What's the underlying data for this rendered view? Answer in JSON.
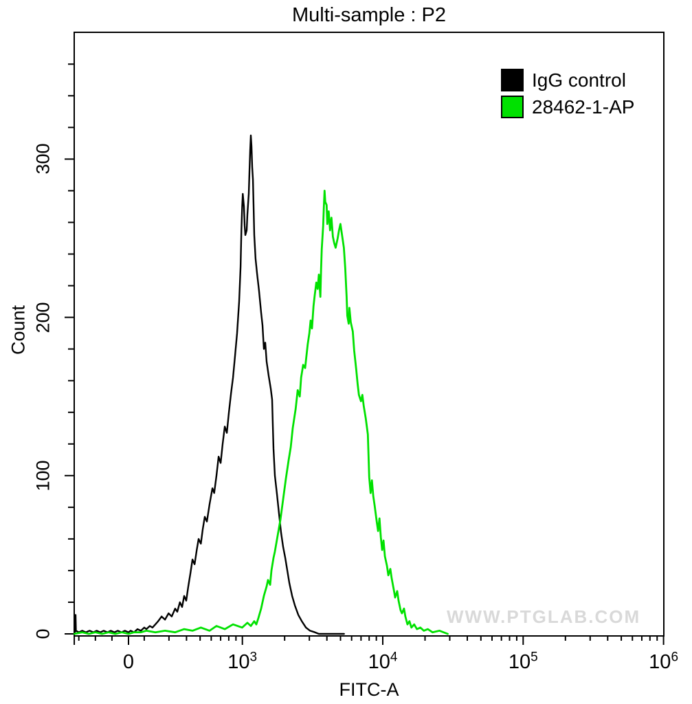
{
  "title": "Multi-sample : P2",
  "watermark": "WWW.PTGLAB.COM",
  "colors": {
    "igg_control": "#000000",
    "antibody": "#00e100",
    "watermark_gray": "#d9d9d9",
    "axis": "#000000",
    "background": "#ffffff"
  },
  "legend": [
    {
      "label": "IgG control",
      "color": "#000000"
    },
    {
      "label": "28462-1-AP",
      "color": "#00e100"
    }
  ],
  "chart_data": {
    "type": "line",
    "subtype": "flow-cytometry-histogram-overlay",
    "title": "Multi-sample : P2",
    "xlabel": "FITC-A",
    "ylabel": "Count",
    "x_scale": "biexponential-log",
    "x_range": [
      -655,
      1000000
    ],
    "y_range": [
      0,
      380
    ],
    "grid": false,
    "legend_position": "top-right",
    "x_ticks": [
      {
        "value": 0,
        "label": "0"
      },
      {
        "value": 1000,
        "base": "10",
        "exp": "3"
      },
      {
        "value": 10000,
        "base": "10",
        "exp": "4"
      },
      {
        "value": 100000,
        "base": "10",
        "exp": "5"
      },
      {
        "value": 1000000,
        "base": "10",
        "exp": "6"
      }
    ],
    "x_minor_ticks": [
      -600,
      -400,
      -200,
      200,
      300,
      400,
      500,
      600,
      700,
      800,
      900,
      2000,
      3000,
      4000,
      5000,
      6000,
      7000,
      8000,
      9000,
      20000,
      30000,
      40000,
      50000,
      60000,
      70000,
      80000,
      90000,
      200000,
      300000,
      400000,
      500000,
      600000,
      700000,
      800000,
      900000
    ],
    "x_edge_tick": -655,
    "y_ticks": [
      {
        "value": 0,
        "label": "0"
      },
      {
        "value": 100,
        "label": "100"
      },
      {
        "value": 200,
        "label": "200"
      },
      {
        "value": 300,
        "label": "300"
      }
    ],
    "y_minor_step": 20,
    "y_minor_max": 360,
    "series": [
      {
        "name": "IgG control",
        "color": "#000000",
        "stroke_width": 2.4,
        "peak": {
          "x": 1150,
          "count": 315
        },
        "points": [
          [
            -655,
            0
          ],
          [
            -648,
            1
          ],
          [
            -643,
            2
          ],
          [
            -639,
            12
          ],
          [
            -635,
            2
          ],
          [
            -600,
            1
          ],
          [
            -560,
            2
          ],
          [
            -515,
            1
          ],
          [
            -470,
            2
          ],
          [
            -425,
            1
          ],
          [
            -385,
            2
          ],
          [
            -340,
            1
          ],
          [
            -300,
            2
          ],
          [
            -255,
            1
          ],
          [
            -215,
            2
          ],
          [
            -170,
            1
          ],
          [
            -130,
            2
          ],
          [
            -85,
            1
          ],
          [
            -45,
            2
          ],
          [
            0,
            1
          ],
          [
            25,
            2
          ],
          [
            66,
            1
          ],
          [
            108,
            3
          ],
          [
            149,
            2
          ],
          [
            191,
            4
          ],
          [
            207,
            3
          ],
          [
            219,
            5
          ],
          [
            229,
            4
          ],
          [
            240,
            6
          ],
          [
            251,
            8
          ],
          [
            266,
            11
          ],
          [
            281,
            9
          ],
          [
            298,
            13
          ],
          [
            314,
            11
          ],
          [
            332,
            16
          ],
          [
            344,
            14
          ],
          [
            359,
            20
          ],
          [
            372,
            17
          ],
          [
            385,
            24
          ],
          [
            398,
            21
          ],
          [
            412,
            30
          ],
          [
            426,
            38
          ],
          [
            441,
            47
          ],
          [
            457,
            44
          ],
          [
            473,
            53
          ],
          [
            488,
            60
          ],
          [
            506,
            57
          ],
          [
            522,
            66
          ],
          [
            540,
            74
          ],
          [
            559,
            71
          ],
          [
            584,
            82
          ],
          [
            612,
            92
          ],
          [
            630,
            89
          ],
          [
            654,
            100
          ],
          [
            677,
            112
          ],
          [
            700,
            108
          ],
          [
            724,
            120
          ],
          [
            749,
            131
          ],
          [
            775,
            127
          ],
          [
            802,
            140
          ],
          [
            830,
            152
          ],
          [
            858,
            162
          ],
          [
            887,
            176
          ],
          [
            917,
            190
          ],
          [
            948,
            210
          ],
          [
            971,
            232
          ],
          [
            984,
            255
          ],
          [
            997,
            270
          ],
          [
            1007,
            278
          ],
          [
            1026,
            270
          ],
          [
            1038,
            258
          ],
          [
            1050,
            252
          ],
          [
            1074,
            255
          ],
          [
            1086,
            265
          ],
          [
            1110,
            278
          ],
          [
            1123,
            292
          ],
          [
            1136,
            305
          ],
          [
            1149,
            315
          ],
          [
            1162,
            308
          ],
          [
            1175,
            295
          ],
          [
            1189,
            287
          ],
          [
            1215,
            252
          ],
          [
            1242,
            237
          ],
          [
            1271,
            228
          ],
          [
            1314,
            217
          ],
          [
            1360,
            203
          ],
          [
            1391,
            195
          ],
          [
            1423,
            180
          ],
          [
            1455,
            184
          ],
          [
            1489,
            172
          ],
          [
            1540,
            163
          ],
          [
            1593,
            155
          ],
          [
            1629,
            148
          ],
          [
            1647,
            132
          ],
          [
            1666,
            117
          ],
          [
            1705,
            100
          ],
          [
            1764,
            88
          ],
          [
            1824,
            76
          ],
          [
            1887,
            64
          ],
          [
            1952,
            55
          ],
          [
            2020,
            48
          ],
          [
            2089,
            40
          ],
          [
            2162,
            32
          ],
          [
            2262,
            24
          ],
          [
            2367,
            18
          ],
          [
            2504,
            12
          ],
          [
            2651,
            8
          ],
          [
            2837,
            4
          ],
          [
            3035,
            2
          ],
          [
            3287,
            1
          ],
          [
            3506,
            0
          ],
          [
            5300,
            0
          ]
        ]
      },
      {
        "name": "28462-1-AP",
        "color": "#00e100",
        "stroke_width": 2.8,
        "peak": {
          "x": 3850,
          "count": 280
        },
        "points": [
          [
            -655,
            0
          ],
          [
            -560,
            1
          ],
          [
            -480,
            0
          ],
          [
            -400,
            1
          ],
          [
            -320,
            0
          ],
          [
            -240,
            1
          ],
          [
            -160,
            0
          ],
          [
            -80,
            1
          ],
          [
            0,
            0
          ],
          [
            66,
            1
          ],
          [
            149,
            1
          ],
          [
            207,
            2
          ],
          [
            240,
            1
          ],
          [
            281,
            2
          ],
          [
            332,
            1
          ],
          [
            385,
            3
          ],
          [
            441,
            2
          ],
          [
            506,
            4
          ],
          [
            584,
            2
          ],
          [
            654,
            5
          ],
          [
            749,
            3
          ],
          [
            858,
            6
          ],
          [
            997,
            4
          ],
          [
            1086,
            7
          ],
          [
            1149,
            5
          ],
          [
            1215,
            8
          ],
          [
            1257,
            6
          ],
          [
            1300,
            10
          ],
          [
            1360,
            16
          ],
          [
            1423,
            24
          ],
          [
            1489,
            30
          ],
          [
            1523,
            34
          ],
          [
            1576,
            31
          ],
          [
            1611,
            40
          ],
          [
            1666,
            48
          ],
          [
            1705,
            52
          ],
          [
            1783,
            62
          ],
          [
            1865,
            72
          ],
          [
            1952,
            85
          ],
          [
            2040,
            98
          ],
          [
            2138,
            110
          ],
          [
            2211,
            118
          ],
          [
            2285,
            130
          ],
          [
            2394,
            142
          ],
          [
            2477,
            154
          ],
          [
            2562,
            150
          ],
          [
            2620,
            162
          ],
          [
            2710,
            170
          ],
          [
            2798,
            168
          ],
          [
            2921,
            183
          ],
          [
            3002,
            190
          ],
          [
            3062,
            198
          ],
          [
            3131,
            193
          ],
          [
            3211,
            207
          ],
          [
            3276,
            214
          ],
          [
            3362,
            222
          ],
          [
            3440,
            218
          ],
          [
            3505,
            227
          ],
          [
            3593,
            213
          ],
          [
            3634,
            230
          ],
          [
            3677,
            243
          ],
          [
            3764,
            258
          ],
          [
            3808,
            270
          ],
          [
            3851,
            280
          ],
          [
            3895,
            273
          ],
          [
            3984,
            271
          ],
          [
            4029,
            259
          ],
          [
            4121,
            267
          ],
          [
            4215,
            255
          ],
          [
            4311,
            263
          ],
          [
            4410,
            251
          ],
          [
            4510,
            247
          ],
          [
            4613,
            244
          ],
          [
            4772,
            250
          ],
          [
            4880,
            255
          ],
          [
            4992,
            259
          ],
          [
            5106,
            253
          ],
          [
            5281,
            244
          ],
          [
            5402,
            231
          ],
          [
            5525,
            213
          ],
          [
            5588,
            201
          ],
          [
            5716,
            196
          ],
          [
            5781,
            206
          ],
          [
            5913,
            197
          ],
          [
            6116,
            191
          ],
          [
            6256,
            179
          ],
          [
            6470,
            167
          ],
          [
            6617,
            158
          ],
          [
            6767,
            151
          ],
          [
            6998,
            147
          ],
          [
            7157,
            151
          ],
          [
            7319,
            144
          ],
          [
            7570,
            136
          ],
          [
            7830,
            126
          ],
          [
            8007,
            99
          ],
          [
            8188,
            89
          ],
          [
            8373,
            97
          ],
          [
            8562,
            87
          ],
          [
            8756,
            81
          ],
          [
            9055,
            71
          ],
          [
            9260,
            65
          ],
          [
            9470,
            73
          ],
          [
            9685,
            61
          ],
          [
            9904,
            53
          ],
          [
            10128,
            59
          ],
          [
            10357,
            49
          ],
          [
            10710,
            43
          ],
          [
            10952,
            37
          ],
          [
            11326,
            41
          ],
          [
            11582,
            35
          ],
          [
            11977,
            28
          ],
          [
            12247,
            23
          ],
          [
            12666,
            27
          ],
          [
            12952,
            21
          ],
          [
            13394,
            15
          ],
          [
            13697,
            13
          ],
          [
            14164,
            16
          ],
          [
            14485,
            11
          ],
          [
            14980,
            6
          ],
          [
            15485,
            8
          ],
          [
            16007,
            4
          ],
          [
            16740,
            6
          ],
          [
            17506,
            3
          ],
          [
            18520,
            4
          ],
          [
            19592,
            2
          ],
          [
            20940,
            3
          ],
          [
            22621,
            1
          ],
          [
            25366,
            2
          ],
          [
            29000,
            0
          ]
        ]
      }
    ]
  }
}
